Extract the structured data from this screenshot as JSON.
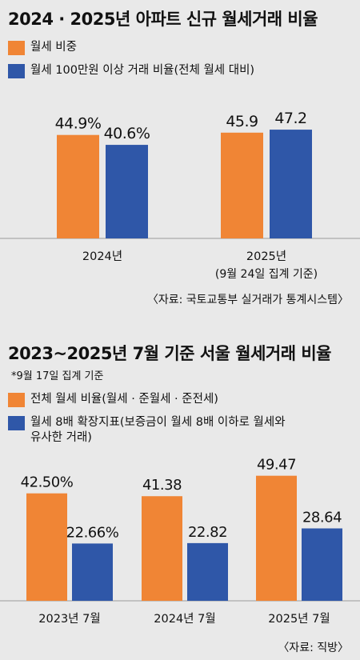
{
  "chart_data": [
    {
      "type": "bar",
      "title": "2024 · 2025년 아파트 신규 월세거래 비율",
      "categories": [
        "2024년",
        "2025년"
      ],
      "category_subtitles": [
        "",
        "(9월 24일 집계 기준)"
      ],
      "series": [
        {
          "name": "월세 비중",
          "values": [
            44.9,
            45.9
          ],
          "labels": [
            "44.9%",
            "45.9"
          ],
          "color": "#f08535"
        },
        {
          "name": "월세 100만원 이상 거래 비율(전체 월세 대비)",
          "values": [
            40.6,
            47.2
          ],
          "labels": [
            "40.6%",
            "47.2"
          ],
          "color": "#2f57a8"
        }
      ],
      "source": "〈자료: 국토교통부 실거래가 통계시스템〉",
      "grid": false
    },
    {
      "type": "bar",
      "title": "2023~2025년 7월 기준 서울 월세거래 비율",
      "note": "*9월 17일 집계 기준",
      "categories": [
        "2023년 7월",
        "2024년 7월",
        "2025년 7월"
      ],
      "series": [
        {
          "name": "전체 월세 비율(월세 · 준월세 · 준전세)",
          "values": [
            42.5,
            41.38,
            49.47
          ],
          "labels": [
            "42.50%",
            "41.38",
            "49.47"
          ],
          "color": "#f08535"
        },
        {
          "name": "월세 8배 확장지표(보증금이 월세 8배 이하로 월세와 유사한 거래)",
          "name_lines": [
            "월세 8배 확장지표(보증금이 월세 8배 이하로 월세와",
            "유사한 거래)"
          ],
          "values": [
            22.66,
            22.82,
            28.64
          ],
          "labels": [
            "22.66%",
            "22.82",
            "28.64"
          ],
          "color": "#2f57a8"
        }
      ],
      "source": "〈자료: 직방〉",
      "grid": false
    }
  ]
}
